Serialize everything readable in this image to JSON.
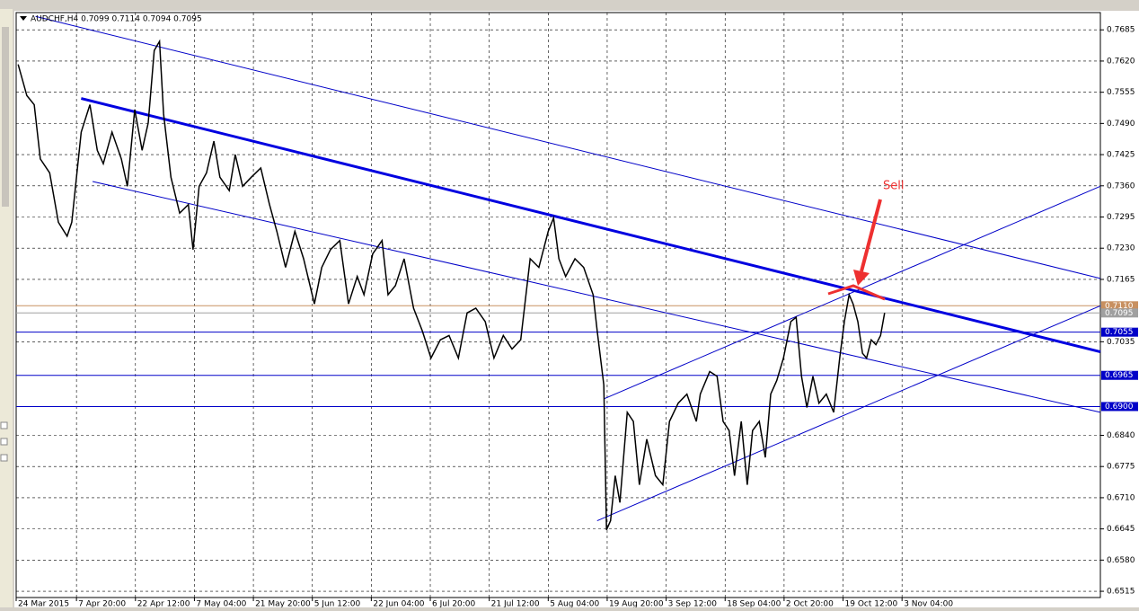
{
  "chart_data": {
    "type": "line",
    "title": "AUDCHF,H4 0.7099 0.7114 0.7094 0.7095",
    "annotation": "Sell",
    "grid": true,
    "xlim": [
      0,
      1618
    ],
    "ylim": [
      0.6502,
      0.7721
    ],
    "xticks": [
      {
        "value": 0,
        "label": "24 Mar 2015"
      },
      {
        "value": 90,
        "label": "7 Apr 20:00"
      },
      {
        "value": 178,
        "label": "22 Apr 12:00"
      },
      {
        "value": 266,
        "label": "7 May 04:00"
      },
      {
        "value": 354,
        "label": "21 May 20:00"
      },
      {
        "value": 442,
        "label": "5 Jun 12:00"
      },
      {
        "value": 530,
        "label": "22 Jun 04:00"
      },
      {
        "value": 618,
        "label": "6 Jul 20:00"
      },
      {
        "value": 706,
        "label": "21 Jul 12:00"
      },
      {
        "value": 794,
        "label": "5 Aug 04:00"
      },
      {
        "value": 882,
        "label": "19 Aug 20:00"
      },
      {
        "value": 970,
        "label": "3 Sep 12:00"
      },
      {
        "value": 1058,
        "label": "18 Sep 04:00"
      },
      {
        "value": 1146,
        "label": "2 Oct 20:00"
      },
      {
        "value": 1234,
        "label": "19 Oct 12:00"
      },
      {
        "value": 1322,
        "label": "3 Nov 04:00"
      }
    ],
    "yticks": [
      0.6515,
      {
        "value": 0.658,
        "label": "0.6580"
      },
      0.6645,
      {
        "value": 0.671,
        "label": "0.6710"
      },
      0.6775,
      {
        "value": 0.684,
        "label": "0.6840"
      },
      0.7035,
      0.7165,
      {
        "value": 0.723,
        "label": "0.7230"
      },
      0.7295,
      {
        "value": 0.736,
        "label": "0.7360"
      },
      0.7425,
      {
        "value": 0.749,
        "label": "0.7490"
      },
      0.7555,
      {
        "value": 0.762,
        "label": "0.7620"
      },
      0.7685
    ],
    "hlines": [
      {
        "value": 0.711,
        "label": "0.7110",
        "color": "#c89060"
      },
      {
        "value": 0.7095,
        "label": "0.7095",
        "color": "#a0a0a0"
      },
      {
        "value": 0.7055,
        "label": "0.7055",
        "color": "#0000c8"
      },
      {
        "value": 0.6965,
        "label": "0.6965",
        "color": "#0000c8"
      },
      {
        "value": 0.69,
        "label": "0.6900",
        "color": "#0000c8"
      }
    ],
    "trendlines": [
      {
        "x1": 29,
        "y1": 0.7713,
        "x2": 1618,
        "y2": 0.7167,
        "color": "#0000c8",
        "width": 1
      },
      {
        "x1": 97,
        "y1": 0.7542,
        "x2": 1618,
        "y2": 0.7014,
        "color": "#0000e0",
        "width": 3
      },
      {
        "x1": 114,
        "y1": 0.7369,
        "x2": 1618,
        "y2": 0.6888,
        "color": "#0000c8",
        "width": 1
      },
      {
        "x1": 877,
        "y1": 0.6916,
        "x2": 1618,
        "y2": 0.7359,
        "color": "#0000c8",
        "width": 1
      },
      {
        "x1": 867,
        "y1": 0.6662,
        "x2": 1618,
        "y2": 0.711,
        "color": "#0000c8",
        "width": 1
      }
    ],
    "x": [
      3,
      16,
      27,
      36,
      50,
      63,
      76,
      83,
      97,
      110,
      121,
      130,
      143,
      157,
      166,
      177,
      188,
      197,
      206,
      214,
      220,
      231,
      244,
      257,
      264,
      273,
      284,
      295,
      304,
      318,
      327,
      338,
      351,
      365,
      378,
      389,
      402,
      416,
      429,
      445,
      456,
      469,
      483,
      496,
      509,
      519,
      532,
      546,
      555,
      566,
      579,
      593,
      606,
      619,
      633,
      646,
      660,
      673,
      686,
      700,
      713,
      727,
      740,
      753,
      767,
      780,
      794,
      802,
      810,
      820,
      834,
      847,
      861,
      867,
      877,
      881,
      887,
      894,
      901,
      912,
      921,
      930,
      941,
      954,
      965,
      975,
      988,
      1001,
      1015,
      1021,
      1035,
      1046,
      1055,
      1064,
      1072,
      1082,
      1091,
      1099,
      1109,
      1118,
      1126,
      1135,
      1145,
      1156,
      1164,
      1172,
      1180,
      1189,
      1198,
      1209,
      1220,
      1229,
      1236,
      1243,
      1249,
      1256,
      1263,
      1269,
      1276,
      1283,
      1290,
      1296
    ],
    "series": [
      {
        "color": "#000000",
        "values": [
          0.7613,
          0.7548,
          0.7529,
          0.7416,
          0.7387,
          0.7284,
          0.7255,
          0.7284,
          0.7472,
          0.7529,
          0.7434,
          0.7406,
          0.7472,
          0.7416,
          0.7359,
          0.7519,
          0.7434,
          0.7491,
          0.7642,
          0.7661,
          0.751,
          0.7378,
          0.7303,
          0.7321,
          0.7227,
          0.7359,
          0.7387,
          0.7453,
          0.7378,
          0.735,
          0.7425,
          0.7359,
          0.7378,
          0.7397,
          0.7321,
          0.7265,
          0.719,
          0.7265,
          0.7208,
          0.7114,
          0.719,
          0.7227,
          0.7246,
          0.7114,
          0.7171,
          0.7133,
          0.7218,
          0.7246,
          0.7133,
          0.7152,
          0.7208,
          0.7105,
          0.7058,
          0.7001,
          0.7039,
          0.7048,
          0.7001,
          0.7095,
          0.7105,
          0.7077,
          0.7001,
          0.7048,
          0.702,
          0.7039,
          0.7208,
          0.719,
          0.7265,
          0.7293,
          0.7208,
          0.7171,
          0.7208,
          0.719,
          0.7133,
          0.7058,
          0.6945,
          0.6643,
          0.6662,
          0.6756,
          0.67,
          0.6888,
          0.6869,
          0.6737,
          0.6832,
          0.6756,
          0.6737,
          0.6869,
          0.6907,
          0.6926,
          0.6869,
          0.6926,
          0.6973,
          0.6963,
          0.6869,
          0.685,
          0.6756,
          0.6869,
          0.6737,
          0.685,
          0.6869,
          0.6794,
          0.6926,
          0.6954,
          0.7001,
          0.7077,
          0.7086,
          0.6963,
          0.6898,
          0.6963,
          0.6907,
          0.6926,
          0.6888,
          0.7001,
          0.7077,
          0.7133,
          0.7114,
          0.7077,
          0.7011,
          0.7001,
          0.7039,
          0.7029,
          0.7048,
          0.7095
        ]
      }
    ]
  }
}
